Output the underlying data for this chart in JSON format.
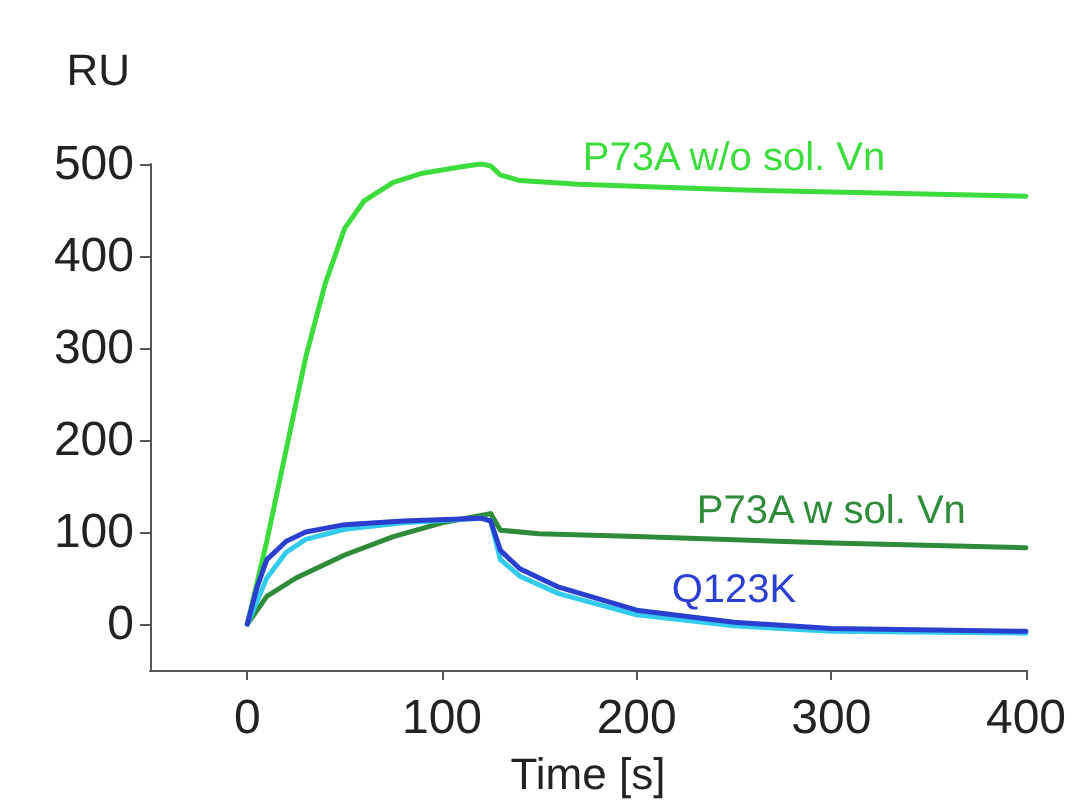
{
  "chart_data": {
    "type": "line",
    "xlabel": "Time [s]",
    "ylabel": "RU",
    "xlim": [
      -50,
      400
    ],
    "xticks": [
      0,
      100,
      200,
      300,
      400
    ],
    "ylim": [
      -50,
      500
    ],
    "yticks": [
      0,
      100,
      200,
      300,
      400,
      500
    ],
    "grid": false,
    "legend": false,
    "marker": "none",
    "line_style": "solid",
    "series": [
      {
        "name": "P73A w/o sol. Vn",
        "color": "#3ddc3d",
        "x": [
          0,
          10,
          20,
          30,
          40,
          50,
          60,
          75,
          90,
          110,
          120,
          125,
          130,
          140,
          170,
          250,
          400
        ],
        "values": [
          0,
          90,
          190,
          290,
          370,
          430,
          460,
          480,
          490,
          497,
          500,
          498,
          488,
          482,
          478,
          472,
          465
        ]
      },
      {
        "name": "P73A w sol. Vn",
        "color": "#2e8b3a",
        "x": [
          0,
          10,
          25,
          50,
          75,
          100,
          120,
          125,
          130,
          150,
          200,
          300,
          400
        ],
        "values": [
          0,
          30,
          50,
          75,
          95,
          110,
          118,
          120,
          102,
          98,
          95,
          88,
          83
        ]
      },
      {
        "color": "#33ccee",
        "x": [
          0,
          5,
          10,
          20,
          30,
          50,
          80,
          120,
          125,
          130,
          140,
          160,
          200,
          250,
          300,
          400
        ],
        "values": [
          0,
          25,
          50,
          78,
          92,
          103,
          110,
          115,
          112,
          70,
          52,
          33,
          10,
          -2,
          -8,
          -10
        ]
      },
      {
        "name": "Q123K",
        "color": "#2a3fd0",
        "x": [
          0,
          5,
          10,
          20,
          30,
          50,
          80,
          120,
          125,
          130,
          140,
          160,
          200,
          250,
          300,
          400
        ],
        "values": [
          0,
          40,
          70,
          90,
          100,
          108,
          112,
          115,
          112,
          80,
          60,
          40,
          15,
          2,
          -5,
          -8
        ]
      }
    ]
  }
}
